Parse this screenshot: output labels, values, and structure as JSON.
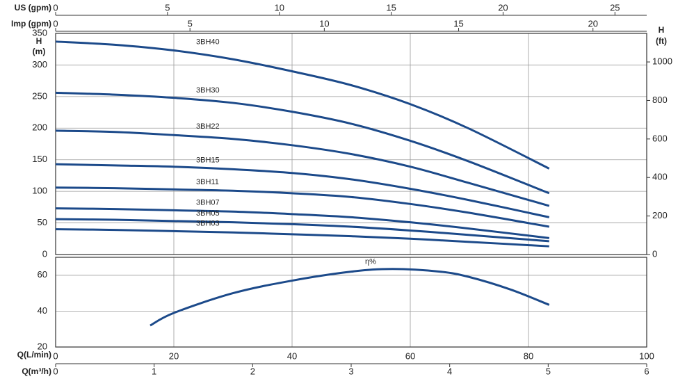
{
  "chart_data": [
    {
      "type": "line",
      "y_label": "H",
      "y_unit": "(m)",
      "y2_label": "H",
      "y2_unit": "(ft)",
      "x": [
        0,
        10,
        20,
        30,
        40,
        50,
        60,
        70,
        83.5
      ],
      "xlim": [
        0,
        100
      ],
      "ylim": [
        0,
        350
      ],
      "yticks": [
        0,
        50,
        100,
        150,
        200,
        250,
        300,
        350
      ],
      "y2lim": [
        0,
        1148.3
      ],
      "y2ticks": [
        0,
        200,
        400,
        600,
        800,
        1000
      ],
      "top_axes": [
        {
          "label": "US (gpm)",
          "lim": [
            0,
            26.42
          ],
          "ticks": [
            0,
            5,
            10,
            15,
            20,
            25
          ]
        },
        {
          "label": "Imp (gpm)",
          "lim": [
            0,
            22
          ],
          "ticks": [
            0,
            5,
            10,
            15,
            20
          ]
        }
      ],
      "grid": true,
      "series": [
        {
          "name": "3BH40",
          "color": "#1c4a8a",
          "values": [
            337,
            332,
            323,
            309,
            290,
            268,
            238,
            199,
            136
          ]
        },
        {
          "name": "3BH30",
          "color": "#1c4a8a",
          "values": [
            256,
            253,
            248,
            240,
            226,
            207,
            180,
            147,
            97
          ]
        },
        {
          "name": "3BH22",
          "color": "#1c4a8a",
          "values": [
            196,
            194,
            189,
            183,
            173,
            159,
            139,
            113,
            77
          ]
        },
        {
          "name": "3BH15",
          "color": "#1c4a8a",
          "values": [
            143,
            141,
            139,
            135,
            129,
            119,
            104,
            86,
            59
          ]
        },
        {
          "name": "3BH11",
          "color": "#1c4a8a",
          "values": [
            106,
            105,
            103,
            101,
            97,
            91,
            80,
            66,
            44
          ]
        },
        {
          "name": "3BH07",
          "color": "#1c4a8a",
          "values": [
            73,
            72,
            70,
            68,
            64,
            59,
            51,
            41,
            26
          ]
        },
        {
          "name": "3BH05",
          "color": "#1c4a8a",
          "values": [
            56,
            55,
            53,
            51,
            48,
            44,
            38,
            31,
            21
          ]
        },
        {
          "name": "3BH03",
          "color": "#1c4a8a",
          "values": [
            40,
            39,
            37,
            35,
            32,
            29,
            25,
            20,
            13
          ]
        }
      ]
    },
    {
      "type": "line",
      "x": [
        16,
        20,
        30,
        40,
        50,
        57,
        65,
        70,
        77,
        83.5
      ],
      "xlim": [
        0,
        100
      ],
      "xticks": [
        0,
        20,
        40,
        60,
        80,
        100
      ],
      "x_label": "Q(L/min)",
      "ylim": [
        20,
        70
      ],
      "yticks": [
        20,
        40,
        60
      ],
      "bottom_axes": [
        {
          "label": "Q(m³/h)",
          "lim": [
            0,
            6
          ],
          "ticks": [
            0,
            1,
            2,
            3,
            4,
            5,
            6
          ]
        }
      ],
      "grid": true,
      "series": [
        {
          "name": "η%",
          "color": "#1c4a8a",
          "values": [
            32,
            39,
            50,
            57,
            62,
            63.5,
            62,
            59,
            52,
            43.5
          ]
        }
      ]
    }
  ]
}
